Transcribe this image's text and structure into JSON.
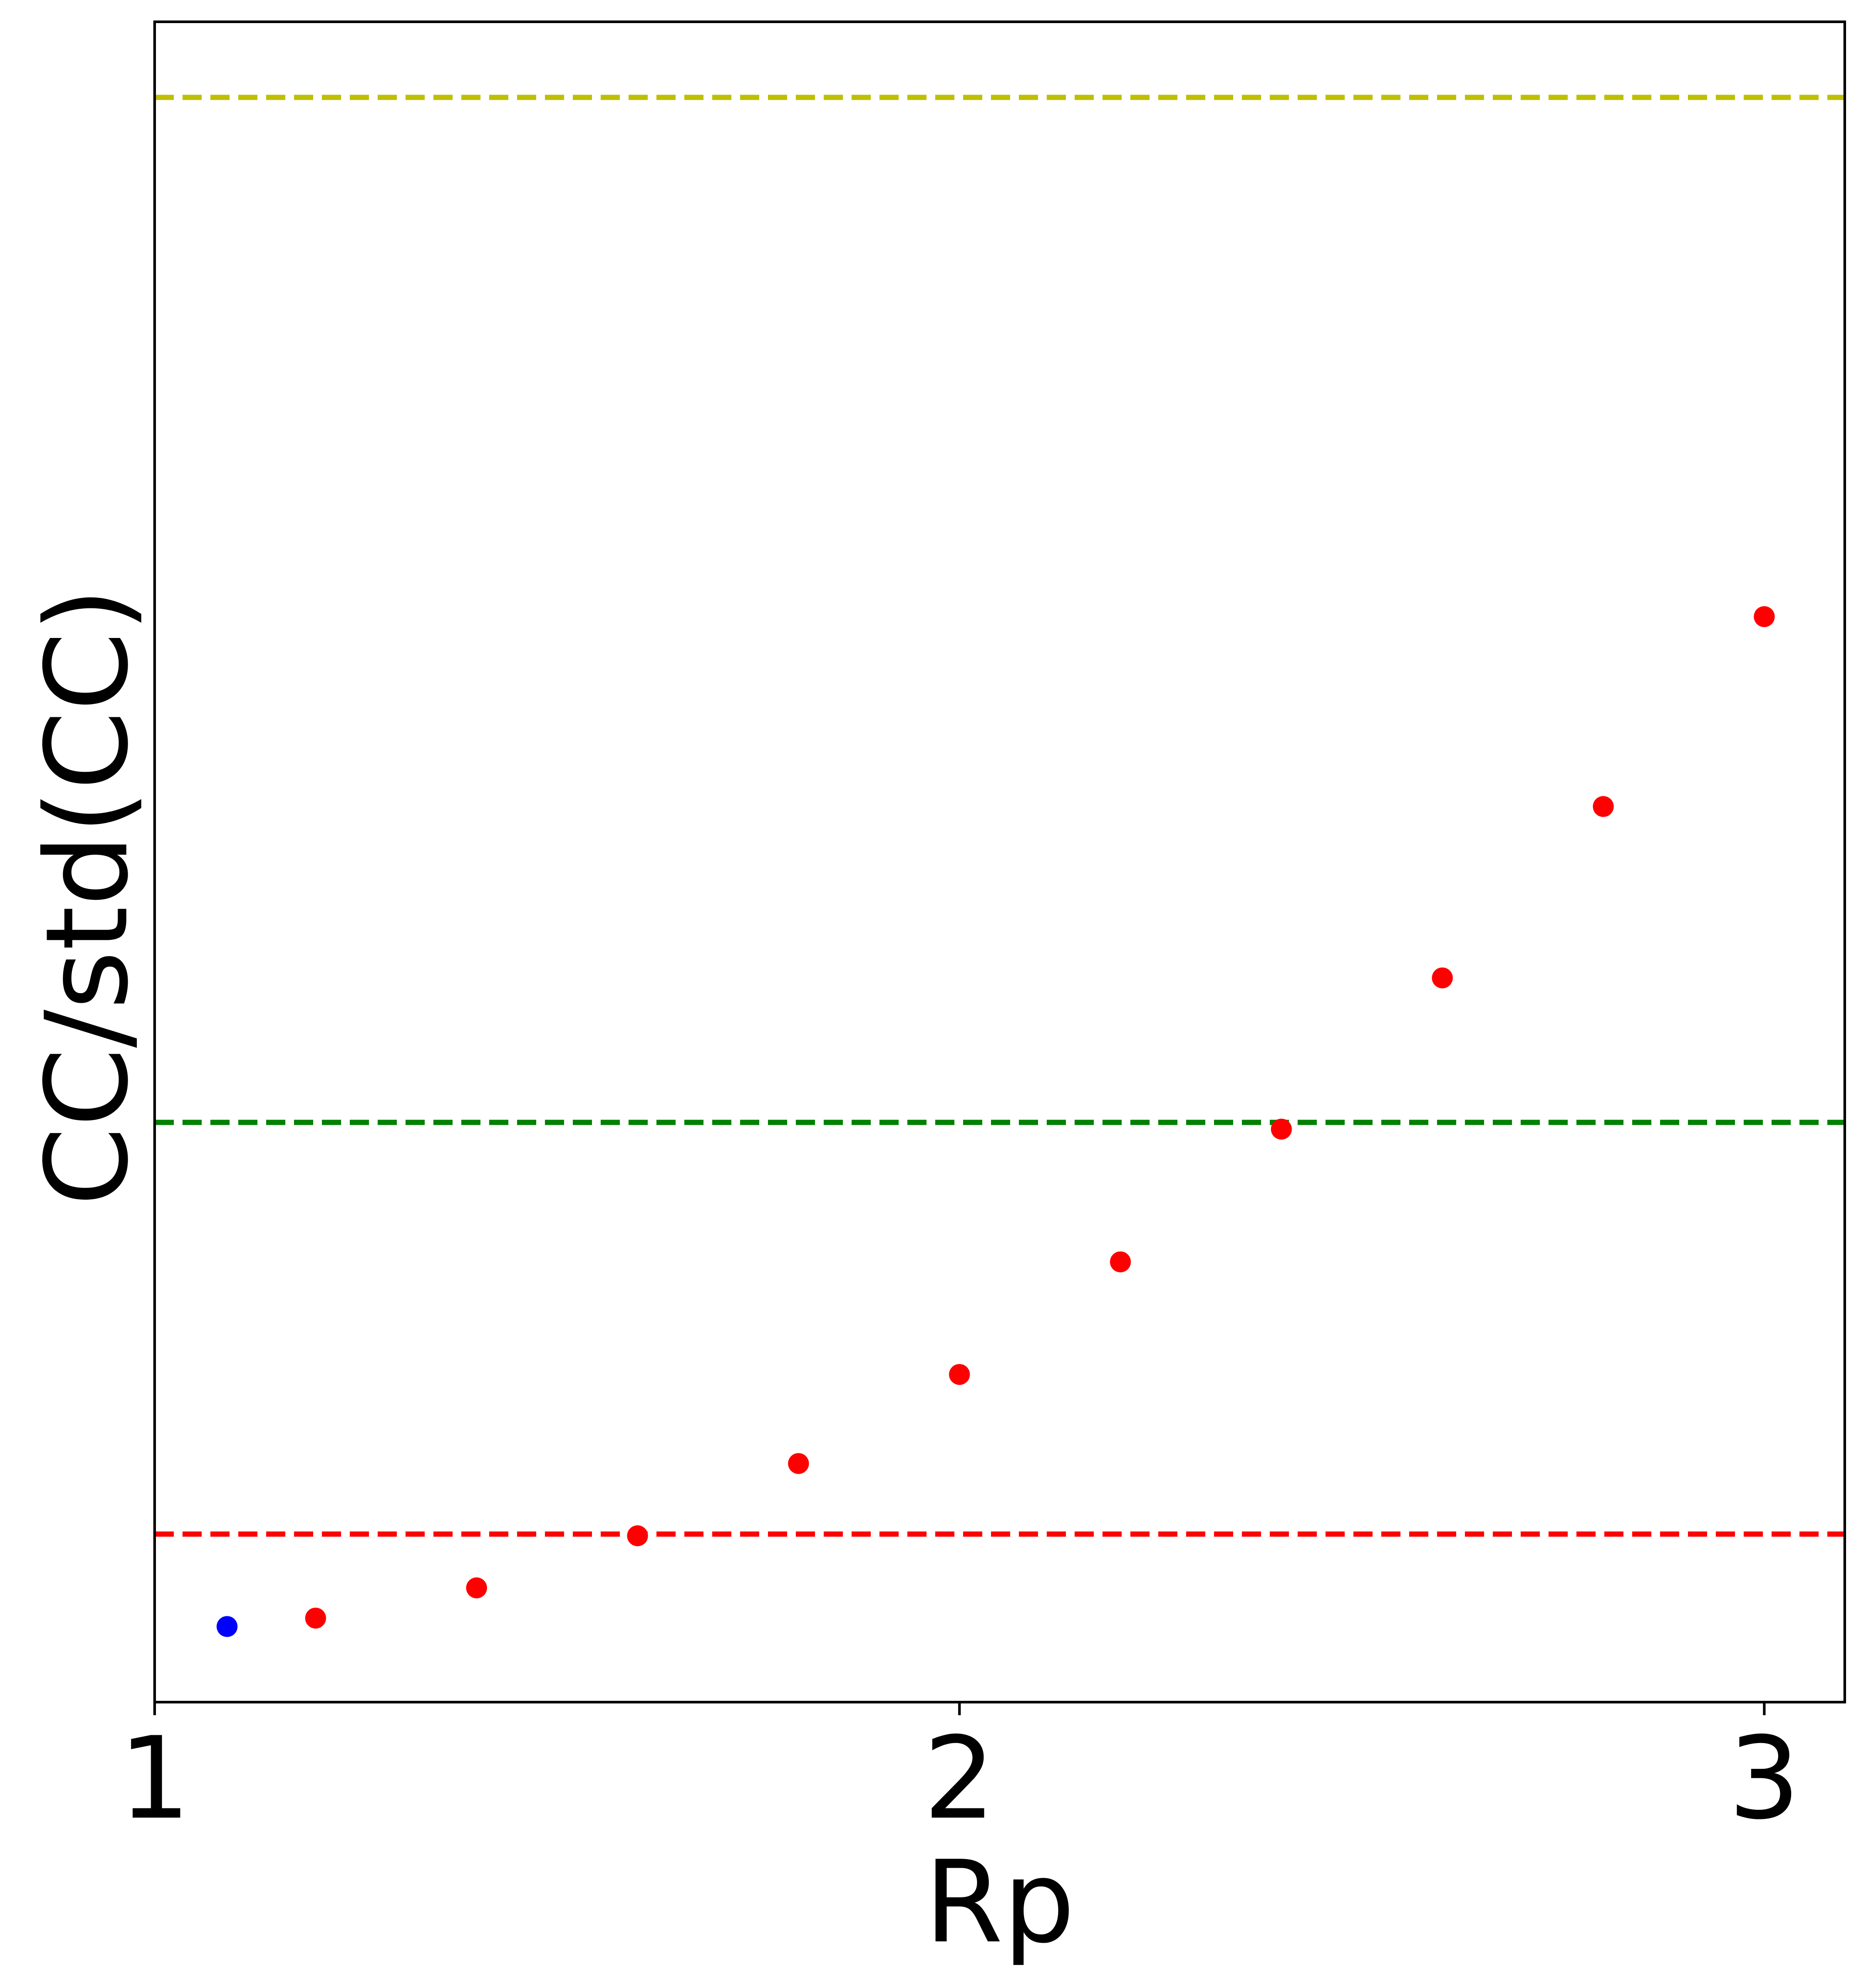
{
  "chart_data": {
    "type": "scatter",
    "title": "",
    "xlabel": "Rp",
    "ylabel": "CC/std(CC)",
    "xlim": [
      1.0,
      3.1
    ],
    "ylim": [
      0.0,
      10.0
    ],
    "x_ticks": [
      {
        "value": 1,
        "label": "1"
      },
      {
        "value": 2,
        "label": "2"
      },
      {
        "value": 3,
        "label": "3"
      }
    ],
    "y_ticks": [],
    "grid": false,
    "legend": "none",
    "series": [
      {
        "color": "#0000ff",
        "points": [
          {
            "x": 1.09,
            "y": 0.45
          }
        ]
      },
      {
        "color": "#ff0000",
        "points": [
          {
            "x": 1.2,
            "y": 0.5
          },
          {
            "x": 1.4,
            "y": 0.68
          },
          {
            "x": 1.6,
            "y": 0.99
          },
          {
            "x": 1.8,
            "y": 1.42
          },
          {
            "x": 2.0,
            "y": 1.95
          },
          {
            "x": 2.2,
            "y": 2.62
          },
          {
            "x": 2.4,
            "y": 3.41
          },
          {
            "x": 2.6,
            "y": 4.31
          },
          {
            "x": 2.8,
            "y": 5.33
          },
          {
            "x": 3.0,
            "y": 6.46
          }
        ]
      }
    ],
    "reference_lines": [
      {
        "y": 1.0,
        "color": "#ff0000",
        "style": "dashed"
      },
      {
        "y": 3.45,
        "color": "#008000",
        "style": "dashed"
      },
      {
        "y": 9.55,
        "color": "#bfbf00",
        "style": "dashed"
      }
    ]
  }
}
